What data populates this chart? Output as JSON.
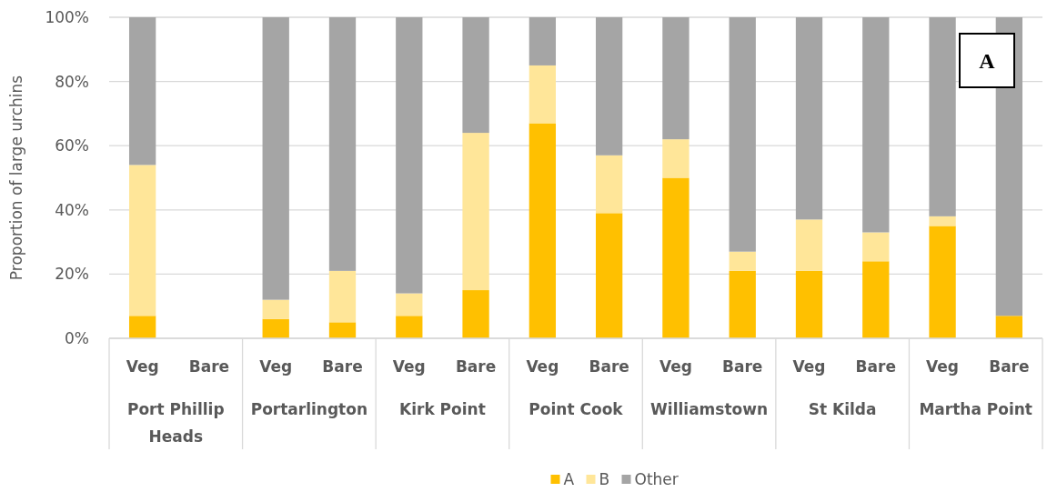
{
  "chart_data": {
    "type": "bar",
    "stacked": true,
    "ylabel": "Proportion of large urchins",
    "categories": [
      "Veg",
      "Bare",
      "Veg",
      "Bare",
      "Veg",
      "Bare",
      "Veg",
      "Bare",
      "Veg",
      "Bare",
      "Veg",
      "Bare",
      "Veg",
      "Bare"
    ],
    "series": [
      {
        "name": "A",
        "color": "#ffc000",
        "values": [
          7,
          null,
          6,
          5,
          7,
          15,
          67,
          39,
          50,
          21,
          21,
          24,
          35,
          7
        ]
      },
      {
        "name": "B",
        "color": "#ffe699",
        "values": [
          47,
          null,
          6,
          16,
          7,
          49,
          18,
          18,
          12,
          6,
          16,
          9,
          3,
          null
        ]
      },
      {
        "name": "Other",
        "color": "#a5a5a5",
        "values": [
          46,
          null,
          88,
          79,
          86,
          36,
          15,
          43,
          38,
          73,
          63,
          67,
          62,
          93
        ]
      }
    ],
    "ylim": [
      0,
      100
    ],
    "yticks": [
      {
        "value": 0,
        "label": "0%"
      },
      {
        "value": 20,
        "label": "20%"
      },
      {
        "value": 40,
        "label": "40%"
      },
      {
        "value": 60,
        "label": "60%"
      },
      {
        "value": 80,
        "label": "80%"
      },
      {
        "value": 100,
        "label": "100%"
      }
    ],
    "grid": "y",
    "legend": "bottom",
    "annotations": [
      "Port Phillip Heads",
      "Portarlington",
      "Kirk Point",
      "Point Cook",
      "Williamstown",
      "St Kilda",
      "Martha Point",
      "A"
    ]
  }
}
